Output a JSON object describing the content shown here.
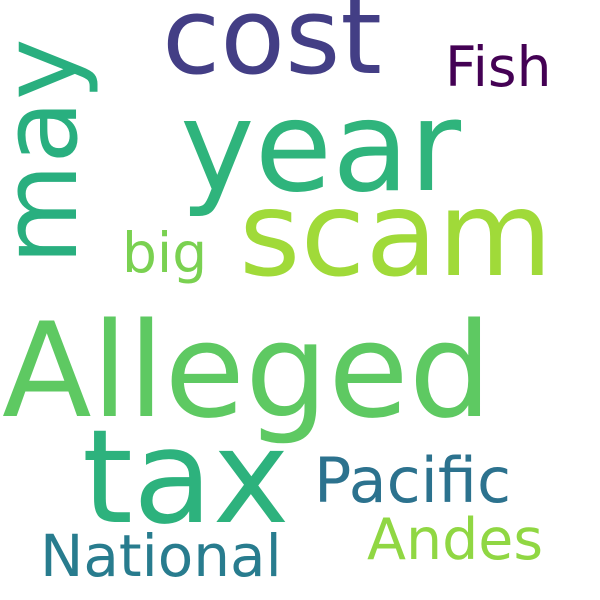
{
  "word_cloud": {
    "words": [
      {
        "id": "alleged",
        "text": "Alleged",
        "color": "#5ec962"
      },
      {
        "id": "scam",
        "text": "scam",
        "color": "#a0da39"
      },
      {
        "id": "year",
        "text": "year",
        "color": "#2fb47c"
      },
      {
        "id": "tax",
        "text": "tax",
        "color": "#2db27d"
      },
      {
        "id": "may",
        "text": "may",
        "color": "#29af7f"
      },
      {
        "id": "cost",
        "text": "cost",
        "color": "#433e85"
      },
      {
        "id": "pacific",
        "text": "Pacific",
        "color": "#2c728e"
      },
      {
        "id": "national",
        "text": "National",
        "color": "#287c8e"
      },
      {
        "id": "andes",
        "text": "Andes",
        "color": "#90d743"
      },
      {
        "id": "fish",
        "text": "Fish",
        "color": "#440154"
      },
      {
        "id": "big",
        "text": "big",
        "color": "#7ad151"
      }
    ]
  }
}
